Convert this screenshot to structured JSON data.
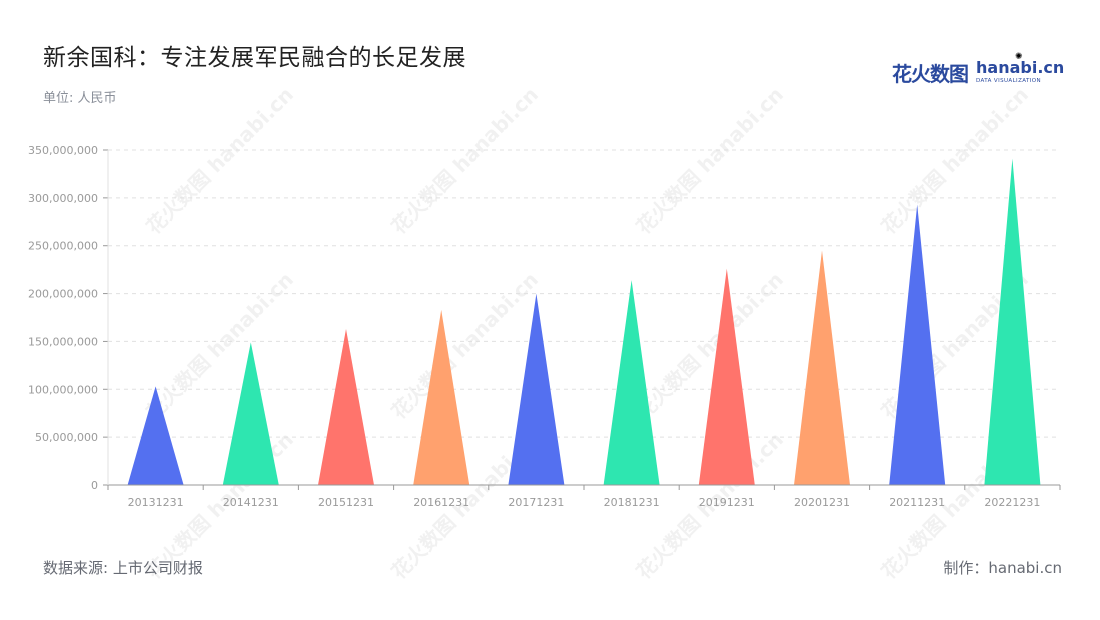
{
  "header": {
    "title": "新余国科：专注发展军民融合的长足发展",
    "unit": "单位: 人民币"
  },
  "logo": {
    "cn": "花火数图",
    "en": "hanabi.cn",
    "sub": "DATA VISUALIZATION",
    "watermark": "花火数图 hanabi.cn"
  },
  "footer": {
    "source": "数据来源: 上市公司财报",
    "maker": "制作：hanabi.cn"
  },
  "colors": {
    "palette": [
      "#5470f0",
      "#2ee6b0",
      "#ff746c",
      "#ffa16e"
    ],
    "grid": "#e0e0e0",
    "axis": "#999999",
    "tick_text": "#9a9a9a"
  },
  "chart_data": {
    "type": "bar",
    "bar_shape": "triangle",
    "categories": [
      "20131231",
      "20141231",
      "20151231",
      "20161231",
      "20171231",
      "20181231",
      "20191231",
      "20201231",
      "20211231",
      "20221231"
    ],
    "values": [
      103000000,
      149000000,
      163000000,
      183000000,
      200000000,
      214000000,
      226000000,
      245000000,
      293000000,
      341000000
    ],
    "bar_colors": [
      "#5470f0",
      "#2ee6b0",
      "#ff746c",
      "#ffa16e",
      "#5470f0",
      "#2ee6b0",
      "#ff746c",
      "#ffa16e",
      "#5470f0",
      "#2ee6b0"
    ],
    "ylim": [
      0,
      350000000
    ],
    "yticks": [
      0,
      50000000,
      100000000,
      150000000,
      200000000,
      250000000,
      300000000,
      350000000
    ],
    "ytick_labels": [
      "0",
      "50,000,000",
      "100,000,000",
      "150,000,000",
      "200,000,000",
      "250,000,000",
      "300,000,000",
      "350,000,000"
    ],
    "grid": true,
    "legend": "none"
  }
}
